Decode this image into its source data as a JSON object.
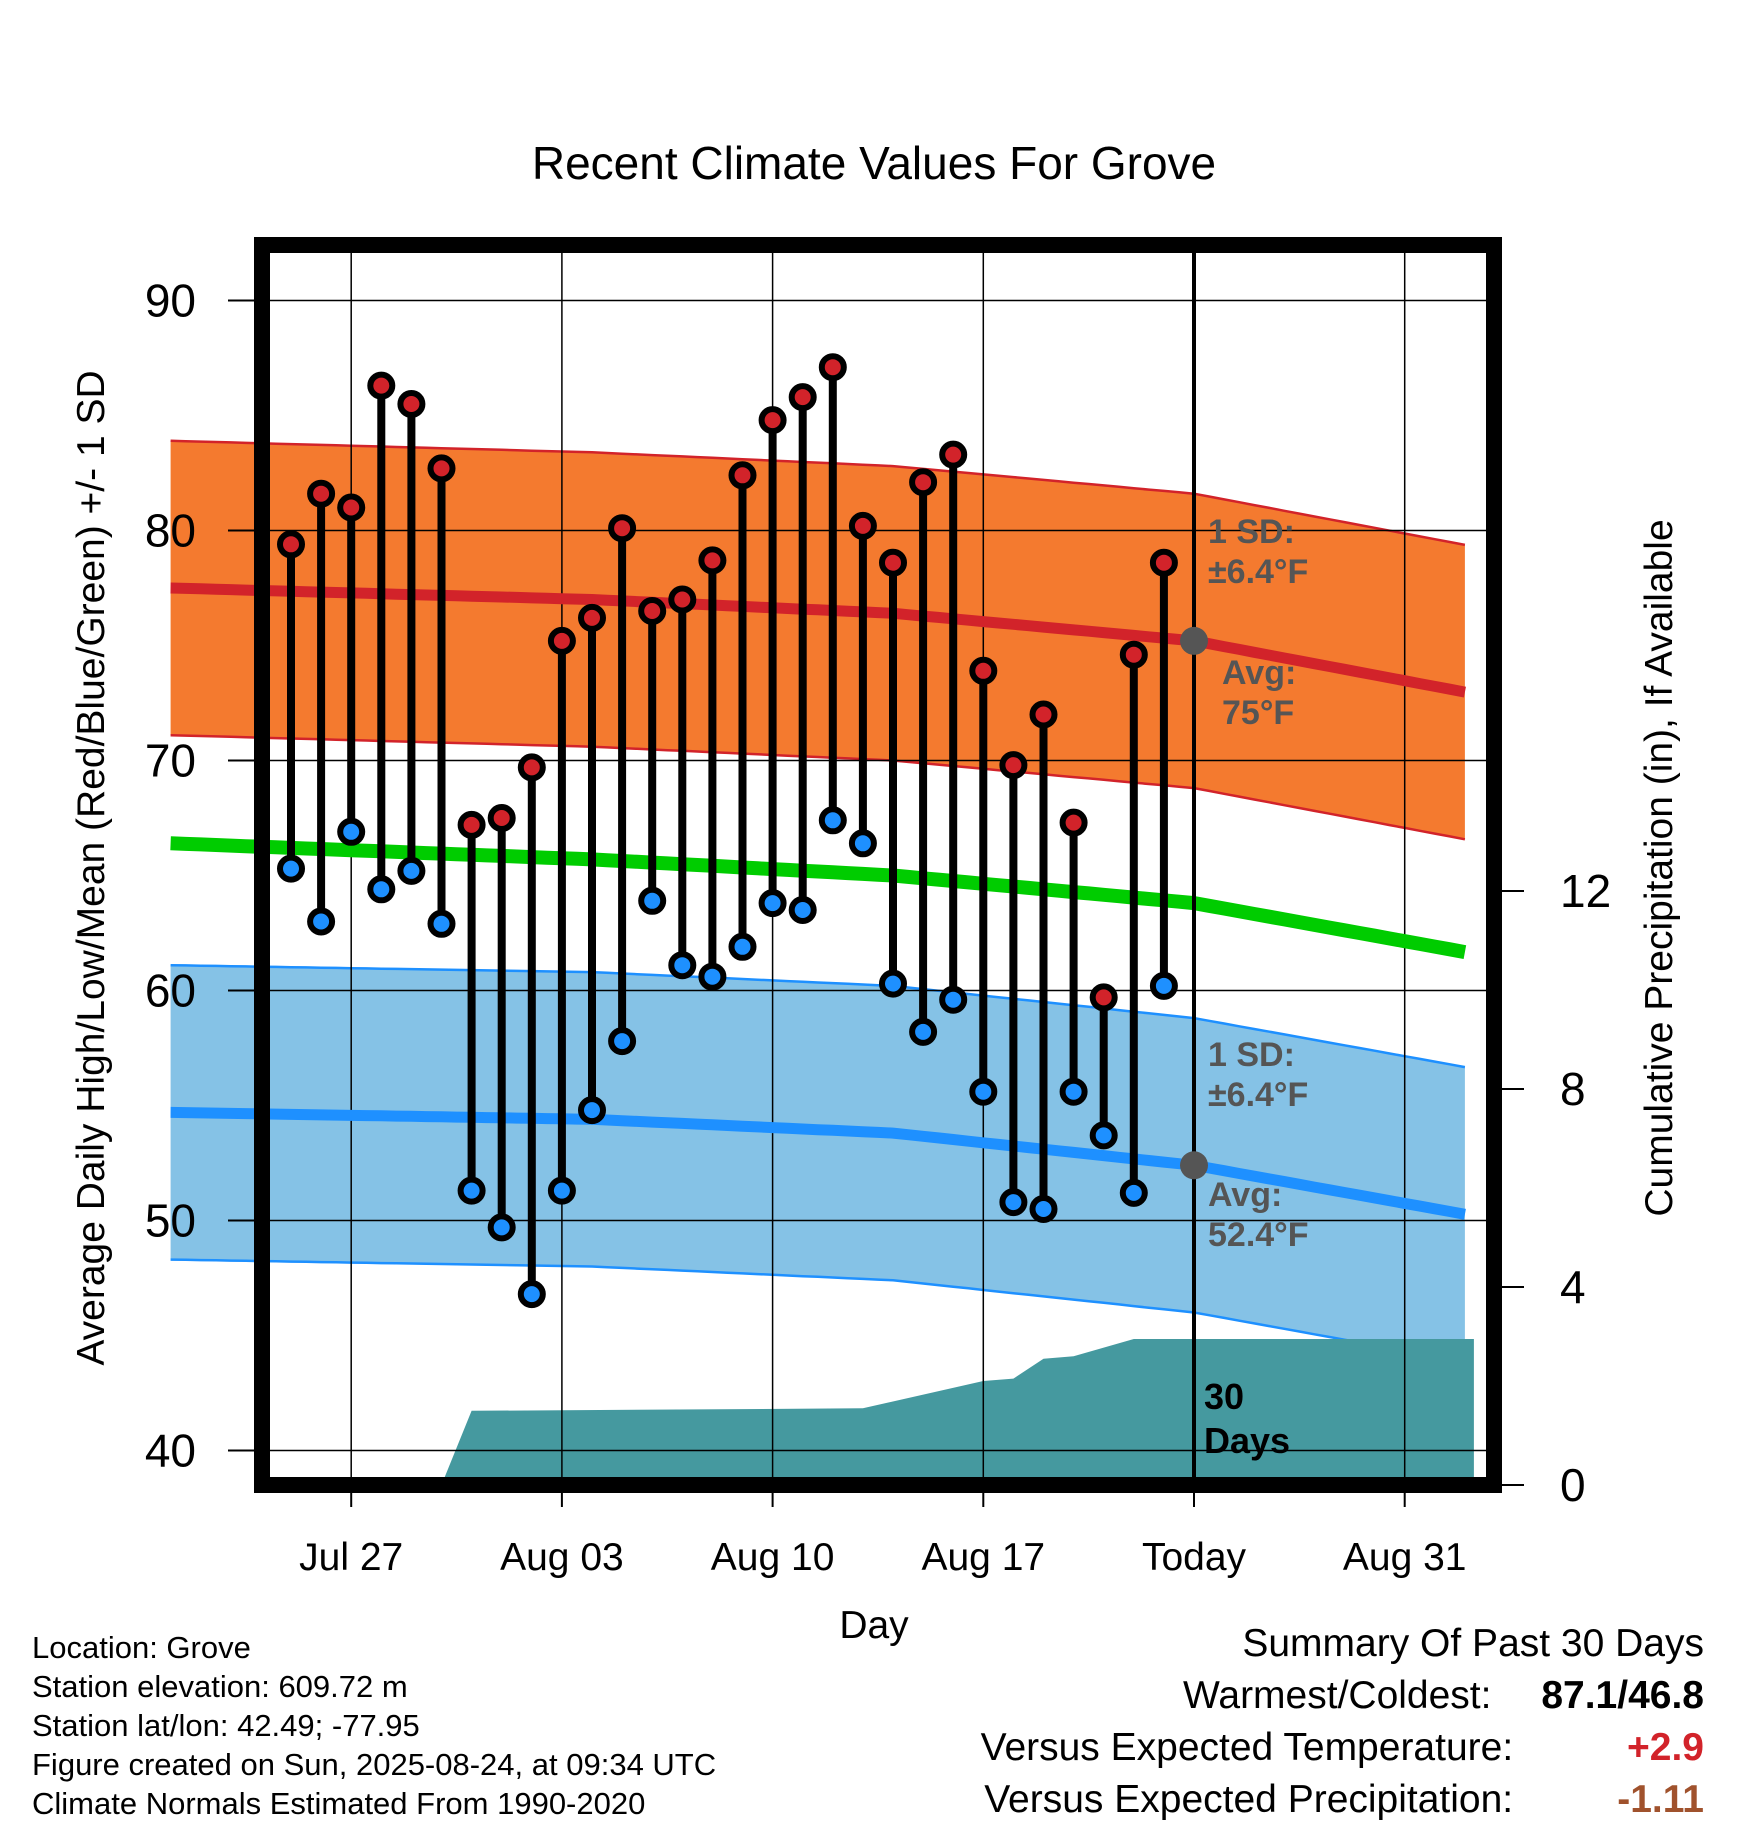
{
  "chart_data": {
    "type": "line",
    "title": "Recent Climate Values For Grove",
    "xlabel": "Day",
    "ylabel": "Average Daily High/Low/Mean (Red/Blue/Green) +/- 1 SD",
    "y2label": "Cumulative Precipitation (in), If Available",
    "x_range_days": [
      -34.4,
      8.4
    ],
    "x_ticks": [
      {
        "day": -28,
        "label": "Jul 27"
      },
      {
        "day": -21,
        "label": "Aug 03"
      },
      {
        "day": -14,
        "label": "Aug 10"
      },
      {
        "day": -7,
        "label": "Aug 17"
      },
      {
        "day": 0,
        "label": "Today"
      },
      {
        "day": 7,
        "label": "Aug 31"
      }
    ],
    "ylim": [
      39,
      92
    ],
    "y_ticks": [
      40,
      50,
      60,
      70,
      80,
      90
    ],
    "y2lim": [
      0,
      18
    ],
    "y2_ticks": [
      0,
      4,
      8,
      12
    ],
    "grid": true,
    "daily_obs": {
      "day": [
        -30,
        -29,
        -28,
        -27,
        -26,
        -25,
        -24,
        -23,
        -22,
        -21,
        -20,
        -19,
        -18,
        -17,
        -16,
        -15,
        -14,
        -13,
        -12,
        -11,
        -10,
        -9,
        -8,
        -7,
        -6,
        -5,
        -4,
        -3,
        -2,
        -1
      ],
      "high": [
        79.4,
        81.6,
        81.0,
        86.3,
        85.5,
        82.7,
        67.2,
        67.5,
        69.7,
        75.2,
        76.2,
        80.1,
        76.5,
        77.0,
        78.7,
        82.4,
        84.8,
        85.8,
        87.1,
        80.2,
        78.6,
        82.1,
        83.3,
        73.9,
        69.8,
        72.0,
        67.3,
        59.7,
        74.6,
        78.6
      ],
      "low": [
        65.3,
        63.0,
        66.9,
        64.4,
        65.2,
        62.9,
        51.3,
        49.7,
        46.8,
        51.3,
        54.8,
        57.8,
        63.9,
        61.1,
        60.6,
        61.9,
        63.8,
        63.5,
        67.4,
        66.4,
        60.3,
        58.2,
        59.6,
        55.6,
        50.8,
        50.5,
        55.6,
        53.7,
        51.2,
        60.2
      ]
    },
    "series": [
      {
        "name": "Avg High",
        "x": [
          -34,
          -20,
          -10,
          0,
          9.3
        ],
        "values": [
          77.5,
          77.0,
          76.4,
          75.2,
          72.9
        ]
      },
      {
        "name": "Avg Low",
        "x": [
          -34,
          -20,
          -10,
          0,
          9.3
        ],
        "values": [
          54.7,
          54.4,
          53.8,
          52.4,
          50.2
        ]
      },
      {
        "name": "Avg Mean",
        "x": [
          -34,
          -20,
          -10,
          0,
          9.3
        ],
        "values": [
          66.4,
          65.7,
          65.0,
          63.8,
          61.6
        ]
      }
    ],
    "sd_high": 6.4,
    "sd_low": 6.4,
    "precip": {
      "day": [
        -34,
        -25,
        -24,
        -11,
        -7,
        -6,
        -5,
        -4,
        -2,
        -1,
        9.3
      ],
      "cumulative": [
        0,
        0,
        1.5,
        1.55,
        2.1,
        2.15,
        2.55,
        2.6,
        2.95,
        2.95,
        2.95
      ]
    },
    "annotations": {
      "high_sd": [
        "1 SD:",
        "±6.4°F"
      ],
      "high_avg": [
        "Avg:",
        "75°F"
      ],
      "low_sd": [
        "1 SD:",
        "±6.4°F"
      ],
      "low_avg": [
        "Avg:",
        "52.4°F"
      ],
      "days_window": [
        "30",
        "Days"
      ]
    },
    "colors": {
      "high_band": "#f47a2f",
      "high_line": "#d2232a",
      "low_band": "#85c2e6",
      "low_line": "#1e90ff",
      "mean_line": "#00cc00",
      "precip": "#45999f",
      "high_dot": "#d2232a",
      "low_dot": "#1e90ff",
      "today_dot": "#555555",
      "annotation_text": "#555555"
    }
  },
  "footer": {
    "location": "Location: Grove",
    "elevation": "Station elevation: 609.72 m",
    "latlon": "Station lat/lon: 42.49; -77.95",
    "created": "Figure created on Sun, 2025-08-24, at 09:34 UTC",
    "normals": "Climate Normals Estimated From 1990-2020"
  },
  "summary": {
    "title": "Summary Of Past 30 Days",
    "warmest_label": "Warmest/Coldest:",
    "warmest_value": "87.1",
    "coldest_value": "46.8",
    "temp_label": "Versus Expected Temperature:",
    "temp_value": "+2.9",
    "temp_color": "#d2232a",
    "precip_label": "Versus Expected Precipitation:",
    "precip_value": "-1.11",
    "precip_color": "#a0522d"
  }
}
